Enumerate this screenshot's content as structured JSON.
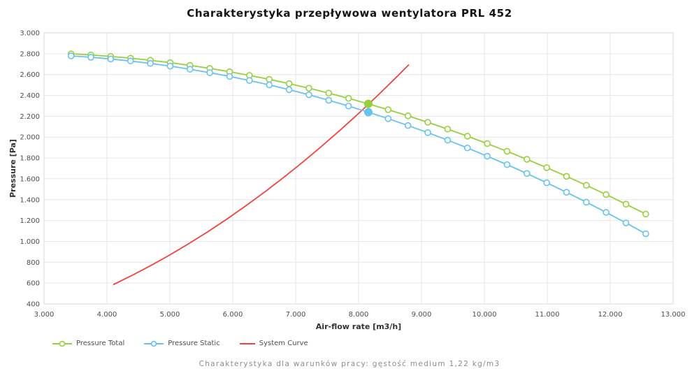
{
  "title": "Charakterystyka przepływowa wentylatora PRL 452",
  "footer": "Charakterystyka dla warunków pracy: gęstość medium 1,22 kg/m3",
  "colors": {
    "pressure_total": "#97D03C",
    "pressure_static": "#66C3EE",
    "system_curve": "#F4413C",
    "grid": "#E6E6E6",
    "plot_border": "#D9D9D9",
    "tick_text": "#4D4D4D",
    "axis_title_text": "#333333",
    "title_text": "#141414",
    "footer_text": "#8C8C8C",
    "legend_text": "#4D4D4D"
  },
  "chart_data": {
    "type": "line",
    "title": "Charakterystyka przepływowa wentylatora PRL 452",
    "xlabel": "Air-flow rate [m3/h]",
    "ylabel": "Pressure [Pa]",
    "xlim": [
      3000,
      13000
    ],
    "ylim": [
      400,
      3000
    ],
    "grid": true,
    "legend_position": "bottom-left",
    "x_tick_labels": [
      "3.000",
      "4.000",
      "5.000",
      "6.000",
      "7.000",
      "8.000",
      "9.000",
      "10.000",
      "11.000",
      "12.000",
      "13.000"
    ],
    "y_tick_labels": [
      "3.000",
      "2.800",
      "2.600",
      "2.400",
      "2.200",
      "2.000",
      "1.800",
      "1.600",
      "1.400",
      "1.200",
      "1.000",
      "800",
      "600",
      "400"
    ],
    "series": [
      {
        "name": "Pressure Total",
        "color_key": "pressure_total",
        "marker": "circle-open",
        "x": [
          3430,
          3745,
          4060,
          4375,
          4690,
          5005,
          5320,
          5635,
          5950,
          6265,
          6580,
          6895,
          7210,
          7525,
          7840,
          8155,
          8470,
          8785,
          9100,
          9415,
          9730,
          10045,
          10360,
          10675,
          10990,
          11305,
          11620,
          11935,
          12250,
          12565
        ],
        "y": [
          2799,
          2788,
          2774,
          2757,
          2737,
          2714,
          2688,
          2659,
          2627,
          2592,
          2554,
          2513,
          2469,
          2422,
          2372,
          2319,
          2263,
          2204,
          2142,
          2077,
          2009,
          1938,
          1864,
          1787,
          1707,
          1624,
          1538,
          1449,
          1357,
          1262
        ]
      },
      {
        "name": "Pressure Static",
        "color_key": "pressure_static",
        "marker": "circle-open",
        "x": [
          3430,
          3745,
          4060,
          4375,
          4690,
          5005,
          5320,
          5635,
          5950,
          6265,
          6580,
          6895,
          7210,
          7525,
          7840,
          8155,
          8470,
          8785,
          9100,
          9415,
          9730,
          10045,
          10360,
          10675,
          10990,
          11305,
          11620,
          11935,
          12250,
          12565
        ],
        "y": [
          2779,
          2766,
          2749,
          2730,
          2707,
          2681,
          2651,
          2618,
          2582,
          2543,
          2501,
          2455,
          2406,
          2353,
          2298,
          2239,
          2177,
          2111,
          2043,
          1971,
          1896,
          1817,
          1736,
          1651,
          1562,
          1471,
          1376,
          1278,
          1177,
          1073
        ]
      },
      {
        "name": "System Curve",
        "color_key": "system_curve",
        "marker": "none",
        "x": [
          4100,
          4400,
          4700,
          5000,
          5300,
          5600,
          5900,
          6200,
          6500,
          6800,
          7100,
          7400,
          7700,
          8000,
          8300,
          8600,
          8800
        ],
        "y": [
          585,
          674,
          769,
          870,
          978,
          1091,
          1211,
          1338,
          1470,
          1609,
          1754,
          1906,
          2063,
          2227,
          2397,
          2574,
          2695
        ]
      }
    ],
    "operating_point": {
      "x": 8155,
      "pressure_total": 2319,
      "pressure_static": 2239
    }
  }
}
